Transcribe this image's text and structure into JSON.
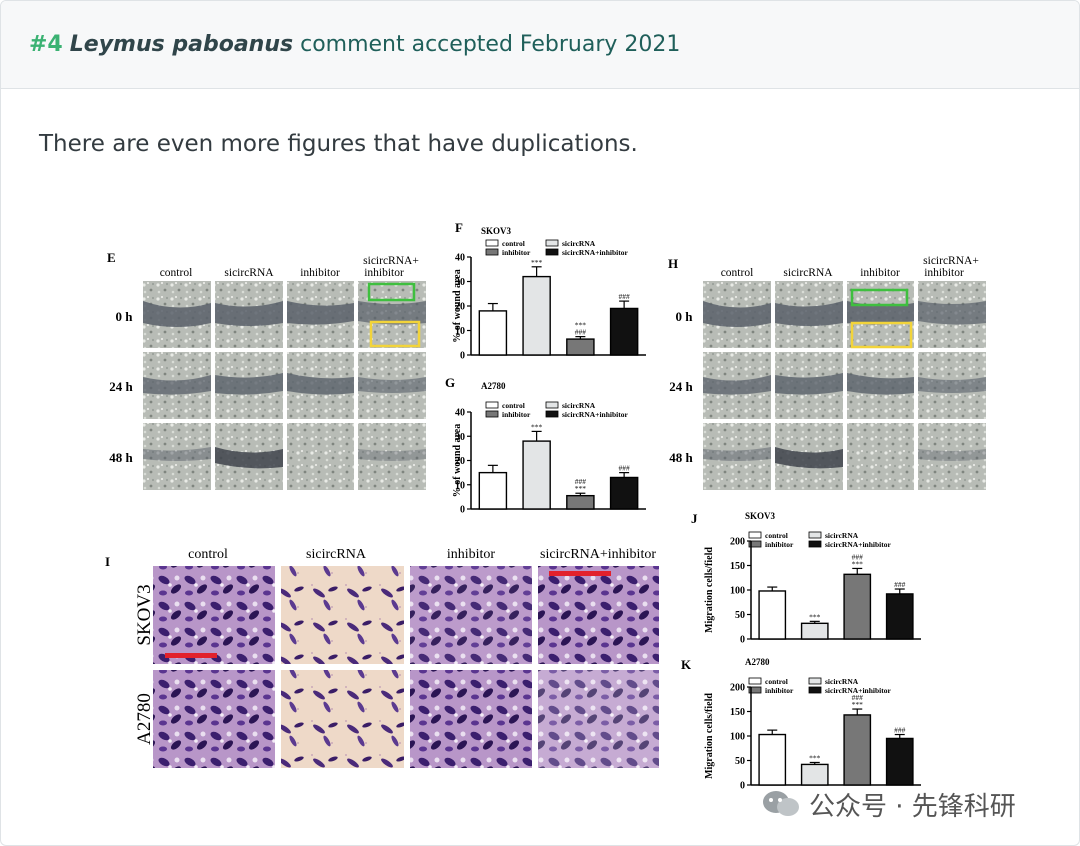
{
  "header": {
    "number": "#4",
    "species": "Leymus paboanus",
    "text": "comment accepted February 2021"
  },
  "intro": "There are even more figures that have duplications.",
  "figure": {
    "panel_E": {
      "label": "E",
      "columns": [
        "control",
        "sicircRNA",
        "inhibitor",
        "sicircRNA+",
        "inhibitor"
      ],
      "rows": [
        "0 h",
        "24 h",
        "48 h"
      ]
    },
    "panel_H": {
      "label": "H",
      "columns": [
        "control",
        "sicircRNA",
        "inhibitor",
        "sicircRNA+",
        "inhibitor"
      ],
      "rows": [
        "0 h",
        "24 h",
        "48 h"
      ]
    },
    "panel_I": {
      "label": "I",
      "columns": [
        "control",
        "sicircRNA",
        "inhibitor",
        "sicircRNA+inhibitor"
      ],
      "rows": [
        "SKOV3",
        "A2780"
      ]
    },
    "legend": {
      "control": "control",
      "sicircRNA": "sicircRNA",
      "inhibitor": "inhibitor",
      "combo": "sicircRNA+inhibitor"
    },
    "sig_star": "***",
    "sig_hash": "###",
    "colors": {
      "control": "#ffffff",
      "sicircRNA": "#e3e5e6",
      "inhibitor": "#777777",
      "combo": "#111111"
    }
  },
  "chart_data": [
    {
      "panel": "F",
      "type": "bar",
      "title": "SKOV3",
      "ylabel": "% of wound area",
      "ylim": [
        0,
        40
      ],
      "yticks": [
        "0",
        "10",
        "20",
        "30",
        "40"
      ],
      "categories": [
        "control",
        "sicircRNA",
        "inhibitor",
        "sicircRNA+inhibitor"
      ],
      "values": [
        18,
        32,
        6.5,
        19
      ],
      "errors": [
        3,
        4,
        1,
        3
      ],
      "annotations": [
        "",
        "***",
        "***\n###",
        "###"
      ]
    },
    {
      "panel": "G",
      "type": "bar",
      "title": "A2780",
      "ylabel": "% of wound area",
      "ylim": [
        0,
        40
      ],
      "yticks": [
        "0",
        "10",
        "20",
        "30",
        "40"
      ],
      "categories": [
        "control",
        "sicircRNA",
        "inhibitor",
        "sicircRNA+inhibitor"
      ],
      "values": [
        15,
        28,
        5.5,
        13
      ],
      "errors": [
        3,
        4,
        1,
        2
      ],
      "annotations": [
        "",
        "***",
        "###\n***",
        "###"
      ]
    },
    {
      "panel": "J",
      "type": "bar",
      "title": "SKOV3",
      "ylabel": "Migration cells/field",
      "ylim": [
        0,
        200
      ],
      "yticks": [
        "0",
        "50",
        "100",
        "150",
        "200"
      ],
      "categories": [
        "control",
        "sicircRNA",
        "inhibitor",
        "sicircRNA+inhibitor"
      ],
      "values": [
        98,
        32,
        132,
        92
      ],
      "errors": [
        8,
        4,
        12,
        10
      ],
      "annotations": [
        "",
        "***",
        "###\n***",
        "###"
      ]
    },
    {
      "panel": "K",
      "type": "bar",
      "title": "A2780",
      "ylabel": "Migration cells/field",
      "ylim": [
        0,
        200
      ],
      "yticks": [
        "0",
        "50",
        "100",
        "150",
        "200"
      ],
      "categories": [
        "control",
        "sicircRNA",
        "inhibitor",
        "sicircRNA+inhibitor"
      ],
      "values": [
        103,
        42,
        143,
        95
      ],
      "errors": [
        9,
        4,
        12,
        8
      ],
      "annotations": [
        "",
        "***",
        "###\n***",
        "###"
      ]
    }
  ],
  "watermark": "公众号 · 先锋科研"
}
